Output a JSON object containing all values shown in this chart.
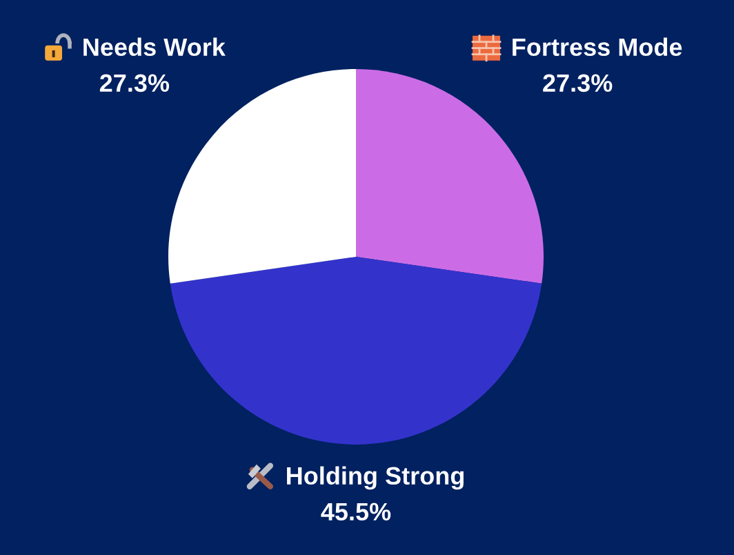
{
  "chart_data": {
    "type": "pie",
    "categories": [
      "Fortress Mode",
      "Holding Strong",
      "Needs Work"
    ],
    "values": [
      27.3,
      45.5,
      27.3
    ],
    "value_labels": [
      "27.3%",
      "45.5%",
      "27.3%"
    ],
    "colors": [
      "#cb6ce6",
      "#3333cc",
      "#ffffff"
    ]
  }
}
